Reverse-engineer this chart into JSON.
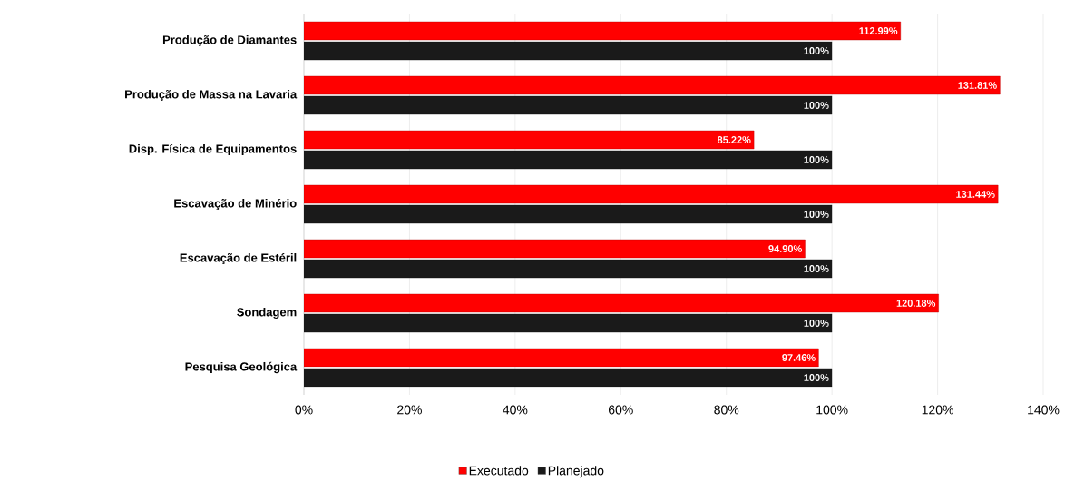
{
  "chart_data": {
    "type": "bar",
    "orientation": "horizontal",
    "categories": [
      "Produção de Diamantes",
      "Produção de Massa na Lavaria",
      "Disp. Física de Equipamentos",
      "Escavação de Minério",
      "Escavação de Estéril",
      "Sondagem",
      "Pesquisa Geológica"
    ],
    "series": [
      {
        "name": "Executado",
        "color": "#ff0000",
        "values": [
          112.99,
          131.81,
          85.22,
          131.44,
          94.9,
          120.18,
          97.46
        ],
        "value_labels": [
          "112.99%",
          "131.81%",
          "85.22%",
          "131.44%",
          "94.90%",
          "120.18%",
          "97.46%"
        ]
      },
      {
        "name": "Planejado",
        "color": "#1a1a1a",
        "values": [
          100,
          100,
          100,
          100,
          100,
          100,
          100
        ],
        "value_labels": [
          "100%",
          "100%",
          "100%",
          "100%",
          "100%",
          "100%",
          "100%"
        ]
      }
    ],
    "xlim": [
      0,
      140
    ],
    "xticks": [
      {
        "value": 0,
        "label": "0%"
      },
      {
        "value": 20,
        "label": "20%"
      },
      {
        "value": 40,
        "label": "40%"
      },
      {
        "value": 60,
        "label": "60%"
      },
      {
        "value": 80,
        "label": "80%"
      },
      {
        "value": 100,
        "label": "100%"
      },
      {
        "value": 120,
        "label": "120%"
      },
      {
        "value": 140,
        "label": "140%"
      }
    ],
    "grid": "x",
    "legend": "bottom"
  }
}
